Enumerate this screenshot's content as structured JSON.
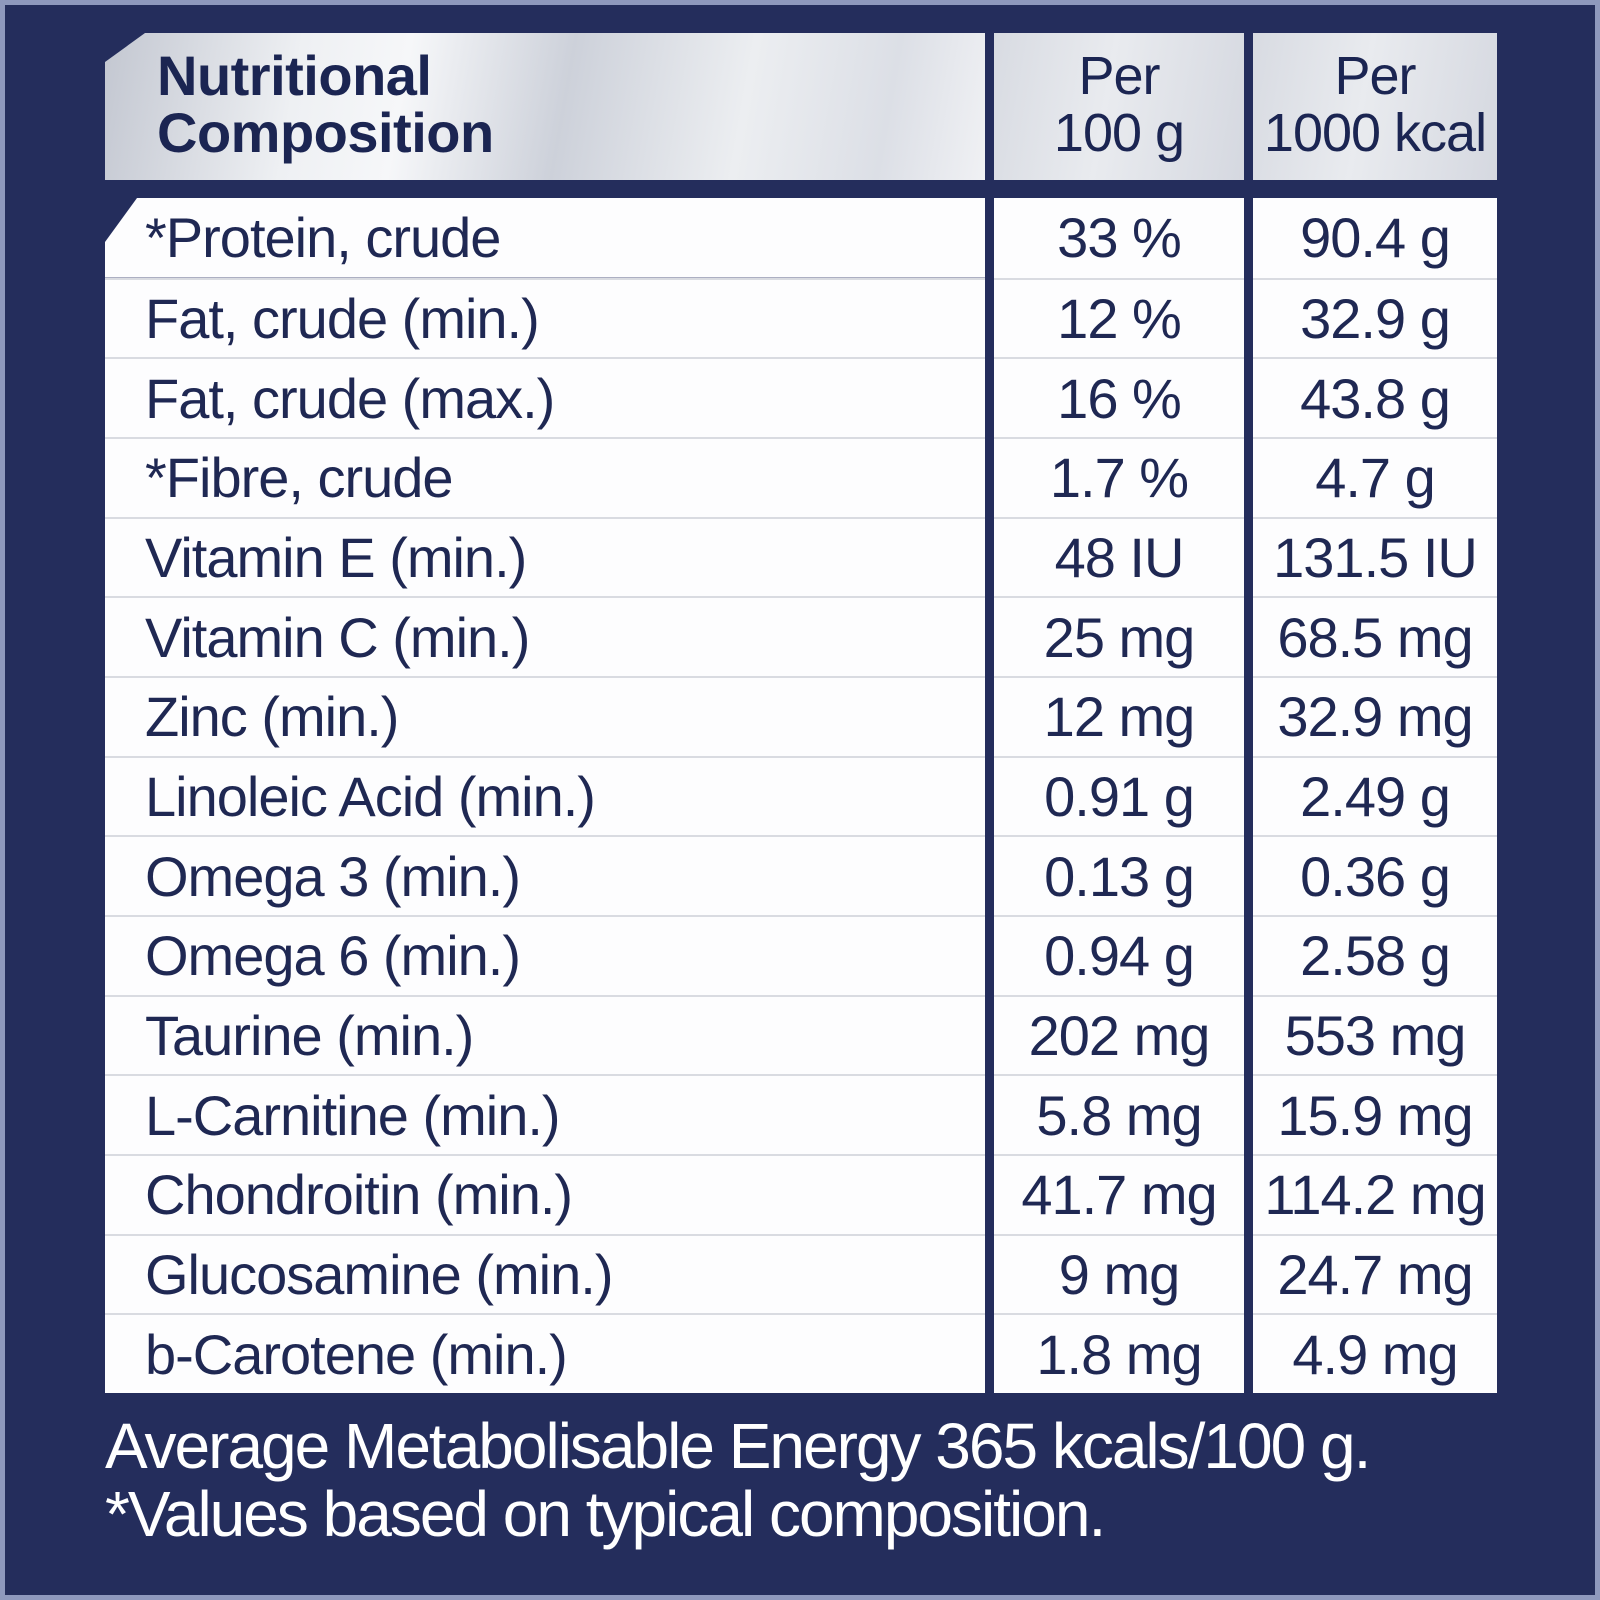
{
  "header": {
    "title_line1": "Nutritional",
    "title_line2": "Composition",
    "per_100g_line1": "Per",
    "per_100g_line2": "100 g",
    "per_1000kcal_line1": "Per",
    "per_1000kcal_line2": "1000 kcal"
  },
  "table": {
    "columns": [
      "Nutritional Composition",
      "Per 100 g",
      "Per 1000 kcal"
    ],
    "rows": [
      {
        "label": "*Protein, crude",
        "per100g": "33 %",
        "per1000kcal": "90.4 g"
      },
      {
        "label": "Fat, crude (min.)",
        "per100g": "12 %",
        "per1000kcal": "32.9 g"
      },
      {
        "label": "Fat, crude (max.)",
        "per100g": "16 %",
        "per1000kcal": "43.8 g"
      },
      {
        "label": "*Fibre, crude",
        "per100g": "1.7 %",
        "per1000kcal": "4.7 g"
      },
      {
        "label": "Vitamin E (min.)",
        "per100g": "48 IU",
        "per1000kcal": "131.5 IU"
      },
      {
        "label": "Vitamin C (min.)",
        "per100g": "25 mg",
        "per1000kcal": "68.5 mg"
      },
      {
        "label": "Zinc (min.)",
        "per100g": "12 mg",
        "per1000kcal": "32.9 mg"
      },
      {
        "label": "Linoleic Acid (min.)",
        "per100g": "0.91 g",
        "per1000kcal": "2.49 g"
      },
      {
        "label": "Omega 3 (min.)",
        "per100g": "0.13 g",
        "per1000kcal": "0.36 g"
      },
      {
        "label": "Omega 6 (min.)",
        "per100g": "0.94 g",
        "per1000kcal": "2.58 g"
      },
      {
        "label": "Taurine (min.)",
        "per100g": "202 mg",
        "per1000kcal": "553 mg"
      },
      {
        "label": "L-Carnitine (min.)",
        "per100g": "5.8 mg",
        "per1000kcal": "15.9 mg"
      },
      {
        "label": "Chondroitin (min.)",
        "per100g": "41.7 mg",
        "per1000kcal": "114.2 mg"
      },
      {
        "label": "Glucosamine (min.)",
        "per100g": "9 mg",
        "per1000kcal": "24.7 mg"
      },
      {
        "label": "b-Carotene (min.)",
        "per100g": "1.8 mg",
        "per1000kcal": "4.9 mg"
      }
    ]
  },
  "footer": {
    "line1": "Average Metabolisable Energy 365 kcals/100 g.",
    "line2": "*Values based on typical composition."
  },
  "colors": {
    "background_navy": "#242d5c",
    "text_navy": "#1f2853",
    "header_text_navy": "#1b2552",
    "body_white": "#fdfdfe",
    "row_divider_gray": "#d9dbe1",
    "silver_light": "#f6f7f9",
    "silver_dark": "#c3c7d1",
    "edge_highlight": "#8e98bd",
    "footer_text": "#ffffff"
  }
}
